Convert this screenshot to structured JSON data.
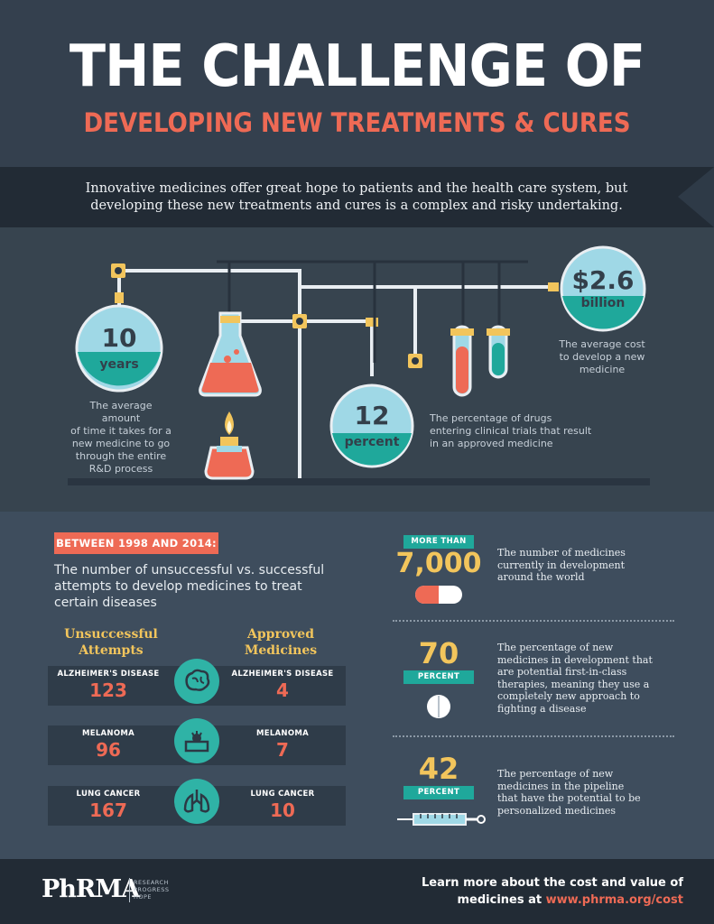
{
  "header": {
    "title": "THE CHALLENGE OF",
    "subtitle": "DEVELOPING NEW TREATMENTS & CURES"
  },
  "banner": {
    "line1": "Innovative medicines offer great hope to patients and the health care system, but",
    "line2": "developing these new treatments and cures is a complex and risky undertaking."
  },
  "stats": {
    "years": {
      "value": "10",
      "unit": "years",
      "caption_lines": [
        "The average amount",
        "of time it takes for a",
        "new medicine to go",
        "through the entire",
        "R&D process"
      ]
    },
    "percent": {
      "value": "12",
      "unit": "percent",
      "caption_lines": [
        "The percentage of drugs",
        "entering clinical trials that result",
        "in an approved medicine"
      ]
    },
    "cost": {
      "value": "$2.6",
      "unit": "billion",
      "caption_lines": [
        "The average cost",
        "to develop a new",
        "medicine"
      ]
    }
  },
  "between": {
    "tag": "BETWEEN 1998 AND 2014:",
    "text_lines": [
      "The number of unsuccessful vs. successful",
      "attempts to develop medicines to treat",
      "certain diseases"
    ],
    "col_left_lines": [
      "Unsuccessful",
      "Attempts"
    ],
    "col_right_lines": [
      "Approved",
      "Medicines"
    ],
    "rows": [
      {
        "disease": "ALZHEIMER'S DISEASE",
        "unsuccessful": "123",
        "approved": "4",
        "icon": "brain-icon"
      },
      {
        "disease": "MELANOMA",
        "unsuccessful": "96",
        "approved": "7",
        "icon": "skin-icon"
      },
      {
        "disease": "LUNG CANCER",
        "unsuccessful": "167",
        "approved": "10",
        "icon": "lungs-icon"
      }
    ]
  },
  "right_stats": [
    {
      "pre": "MORE THAN",
      "value": "7,000",
      "post": "",
      "desc_lines": [
        "The number of medicines",
        "currently in development",
        "around the world"
      ],
      "icon": "capsule-icon"
    },
    {
      "pre": "",
      "value": "70",
      "post": "PERCENT",
      "desc_lines": [
        "The percentage of new",
        "medicines in development that",
        "are potential first-in-class",
        "therapies, meaning they use a",
        "completely new approach to",
        "fighting a disease"
      ],
      "icon": "tablet-icon"
    },
    {
      "pre": "",
      "value": "42",
      "post": "PERCENT",
      "desc_lines": [
        "The percentage of new",
        "medicines in the pipeline",
        "that have the potential to be",
        "personalized medicines"
      ],
      "icon": "syringe-icon"
    }
  ],
  "footer": {
    "logo": "PhRMA",
    "logo_tag": [
      "RESEARCH",
      "PROGRESS",
      "HOPE"
    ],
    "text1": "Learn more about the cost and value of",
    "text2_prefix": "medicines at ",
    "url": "www.phrma.org/cost"
  },
  "colors": {
    "background": "#33414f",
    "accent_red": "#ee6a55",
    "accent_yellow": "#f2c55c",
    "accent_teal": "#2fb3a6",
    "dark": "#222b35"
  }
}
